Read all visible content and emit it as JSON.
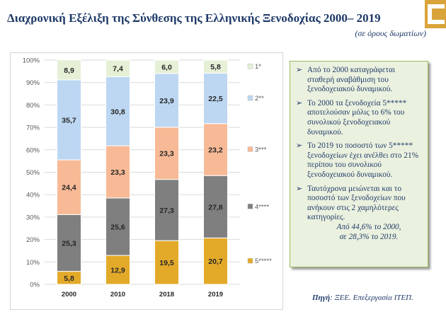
{
  "title": "Διαχρονική Εξέλιξη της Σύνθεσης της Ελληνικής Ξενοδοχίας 2000– 2019",
  "subtitle": "(σε όρους δωματίων)",
  "colors": {
    "accent": "#1f3a68",
    "note_bg": "#ebf1df",
    "note_border": "#9bbb59"
  },
  "notes": {
    "items": [
      "Από το 2000 καταγράφεται σταθερή αναβάθμιση του ξενοδοχειακού δυναμικού.",
      "Το 2000 τα ξενοδοχεία 5***** αποτελούσαν μόλις το 6% του συνολικού ξενοδοχειακού δυναμικού.",
      "Το 2019 το ποσοστό των 5***** ξενοδοχείων έχει ανέλθει στο 21% περίπου του συνολικού ξενοδοχειακού δυναμικού.",
      "Ταυτόχρονα μειώνεται και το ποσοστό των ξενοδοχείων που ανήκουν στις 2 χαμηλότερες κατηγορίες."
    ],
    "tail_line1": "Από 44,6% το 2000,",
    "tail_line2": "σε 28,3% το 2019."
  },
  "source": {
    "label": "Πηγή",
    "text": ": ΞΕΕ. Επεξεργασία ΙΤΕΠ."
  },
  "chart_data": {
    "type": "bar",
    "stacked": true,
    "categories": [
      "2000",
      "2010",
      "2018",
      "2019"
    ],
    "yticks": [
      "0%",
      "10%",
      "20%",
      "30%",
      "40%",
      "50%",
      "60%",
      "70%",
      "80%",
      "90%",
      "100%"
    ],
    "ylim": [
      0,
      100
    ],
    "grid": true,
    "legend_position": "right",
    "series": [
      {
        "name": "5*****",
        "values": [
          5.8,
          12.9,
          19.5,
          20.7
        ],
        "labels": [
          "5,8",
          "12,9",
          "19,5",
          "20,7"
        ],
        "color": "#e3aa2a"
      },
      {
        "name": "4****",
        "values": [
          25.3,
          25.6,
          27.3,
          27.8
        ],
        "labels": [
          "25,3",
          "25,6",
          "27,3",
          "27,8"
        ],
        "color": "#7f7f7f"
      },
      {
        "name": "3***",
        "values": [
          24.4,
          23.3,
          23.3,
          23.2
        ],
        "labels": [
          "24,4",
          "23,3",
          "23,3",
          "23,2"
        ],
        "color": "#f8ba96"
      },
      {
        "name": "2**",
        "values": [
          35.7,
          30.8,
          23.9,
          22.5
        ],
        "labels": [
          "35,7",
          "30,8",
          "23,9",
          "22,5"
        ],
        "color": "#bdd7f2"
      },
      {
        "name": "1*",
        "values": [
          8.9,
          7.4,
          6.0,
          5.8
        ],
        "labels": [
          "8,9",
          "7,4",
          "6,0",
          "5,8"
        ],
        "color": "#e6f0d6"
      }
    ]
  }
}
